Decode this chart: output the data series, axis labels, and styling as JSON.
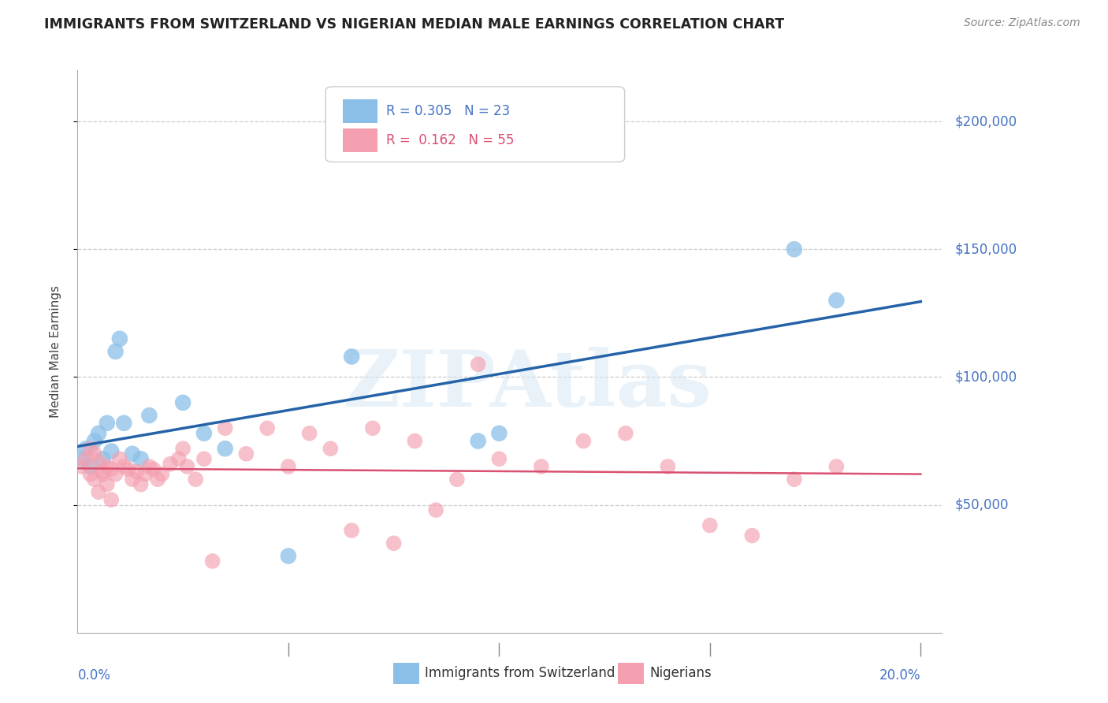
{
  "title": "IMMIGRANTS FROM SWITZERLAND VS NIGERIAN MEDIAN MALE EARNINGS CORRELATION CHART",
  "source": "Source: ZipAtlas.com",
  "ylabel": "Median Male Earnings",
  "xlim": [
    0.0,
    0.205
  ],
  "ylim": [
    0,
    220000
  ],
  "y_ticks": [
    50000,
    100000,
    150000,
    200000
  ],
  "y_tick_labels": [
    "$50,000",
    "$100,000",
    "$150,000",
    "$200,000"
  ],
  "watermark": "ZIPAtlas",
  "blue_color": "#8bbfe8",
  "pink_color": "#f4a0b0",
  "blue_line_color": "#2563a8",
  "pink_line_color": "#d95070",
  "axis_label_color": "#4472c4",
  "legend_label1": "Immigrants from Switzerland",
  "legend_label2": "Nigerians",
  "swiss_x": [
    0.001,
    0.002,
    0.003,
    0.004,
    0.005,
    0.006,
    0.008,
    0.009,
    0.01,
    0.011,
    0.013,
    0.015,
    0.017,
    0.025,
    0.03,
    0.035,
    0.05,
    0.065,
    0.095,
    0.17,
    0.18,
    0.1,
    0.007
  ],
  "swiss_y": [
    68000,
    72000,
    65000,
    75000,
    78000,
    68000,
    71000,
    110000,
    115000,
    82000,
    70000,
    68000,
    85000,
    90000,
    78000,
    72000,
    30000,
    108000,
    75000,
    150000,
    130000,
    78000,
    82000
  ],
  "nigerian_x": [
    0.001,
    0.002,
    0.003,
    0.004,
    0.005,
    0.006,
    0.007,
    0.008,
    0.009,
    0.01,
    0.011,
    0.012,
    0.013,
    0.014,
    0.015,
    0.016,
    0.017,
    0.018,
    0.019,
    0.02,
    0.025,
    0.03,
    0.035,
    0.04,
    0.045,
    0.05,
    0.055,
    0.06,
    0.07,
    0.08,
    0.09,
    0.1,
    0.11,
    0.12,
    0.13,
    0.14,
    0.15,
    0.16,
    0.17,
    0.18,
    0.022,
    0.024,
    0.026,
    0.028,
    0.032,
    0.065,
    0.075,
    0.085,
    0.095,
    0.003,
    0.004,
    0.005,
    0.006,
    0.007,
    0.008
  ],
  "nigerian_y": [
    65000,
    68000,
    62000,
    70000,
    67000,
    63000,
    65000,
    64000,
    62000,
    68000,
    65000,
    64000,
    60000,
    63000,
    58000,
    62000,
    65000,
    64000,
    60000,
    62000,
    72000,
    68000,
    80000,
    70000,
    80000,
    65000,
    78000,
    72000,
    80000,
    75000,
    60000,
    68000,
    65000,
    75000,
    78000,
    65000,
    42000,
    38000,
    60000,
    65000,
    66000,
    68000,
    65000,
    60000,
    28000,
    40000,
    35000,
    48000,
    105000,
    72000,
    60000,
    55000,
    62000,
    58000,
    52000
  ]
}
